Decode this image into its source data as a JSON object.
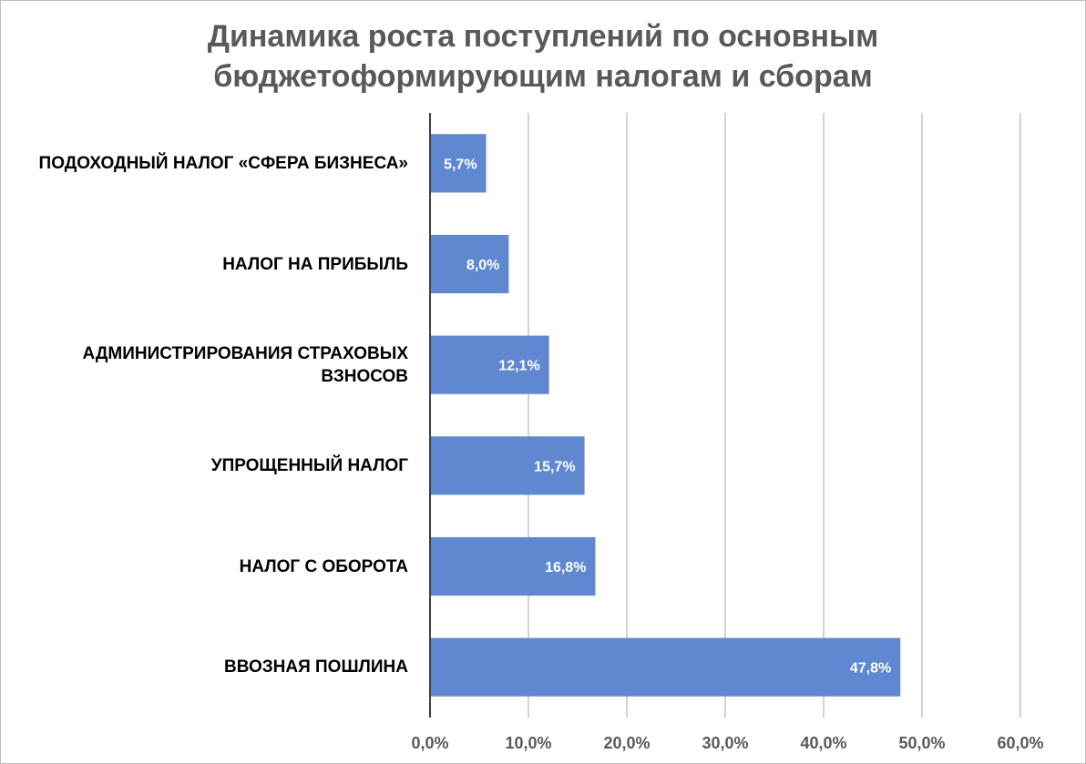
{
  "chart_data": {
    "type": "bar",
    "orientation": "horizontal",
    "title_lines": [
      "Динамика роста поступлений по основным",
      "бюджетоформирующим налогам и сборам"
    ],
    "categories": [
      "ПОДОХОДНЫЙ НАЛОГ «СФЕРА БИЗНЕСА»",
      "НАЛОГ НА ПРИБЫЛЬ",
      "АДМИНИСТРИРОВАНИЯ СТРАХОВЫХ ВЗНОСОВ",
      "УПРОЩЕННЫЙ НАЛОГ",
      "НАЛОГ С ОБОРОТА",
      "ВВОЗНАЯ ПОШЛИНА"
    ],
    "values": [
      5.7,
      8.0,
      12.1,
      15.7,
      16.8,
      47.8
    ],
    "data_labels": [
      "5,7%",
      "8,0%",
      "12,1%",
      "15,7%",
      "16,8%",
      "47,8%"
    ],
    "x_ticks": [
      "0,0%",
      "10,0%",
      "20,0%",
      "30,0%",
      "40,0%",
      "50,0%",
      "60,0%"
    ],
    "xlim": [
      0,
      60
    ],
    "grid": "vertical",
    "legend": "none",
    "colors": {
      "bar": "#6088d0",
      "grid": "#a6a6a6",
      "axis": "#404040",
      "tick_text": "#595959",
      "data_label": "#ffffff"
    }
  }
}
